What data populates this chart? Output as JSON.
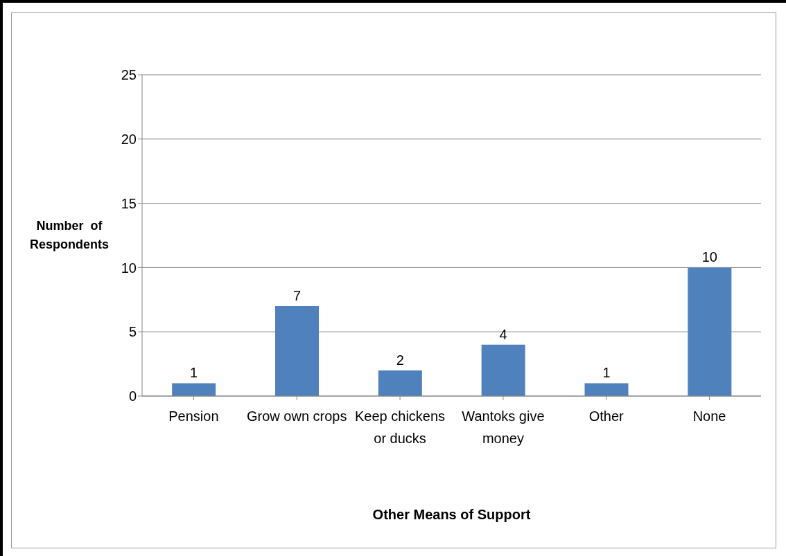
{
  "chart_data": {
    "type": "bar",
    "xlabel": "Other Means of Support",
    "ylabel": "Number  of Respondents",
    "categories": [
      "Pension",
      "Grow own crops",
      "Keep chickens or ducks",
      "Wantoks give money",
      "Other",
      "None"
    ],
    "values": [
      1,
      7,
      2,
      4,
      1,
      10
    ],
    "color": "#4f81bd",
    "ylim": [
      0,
      25
    ],
    "yticks": [
      0,
      5,
      10,
      15,
      20,
      25
    ],
    "grid": "y",
    "data_labels": true
  }
}
